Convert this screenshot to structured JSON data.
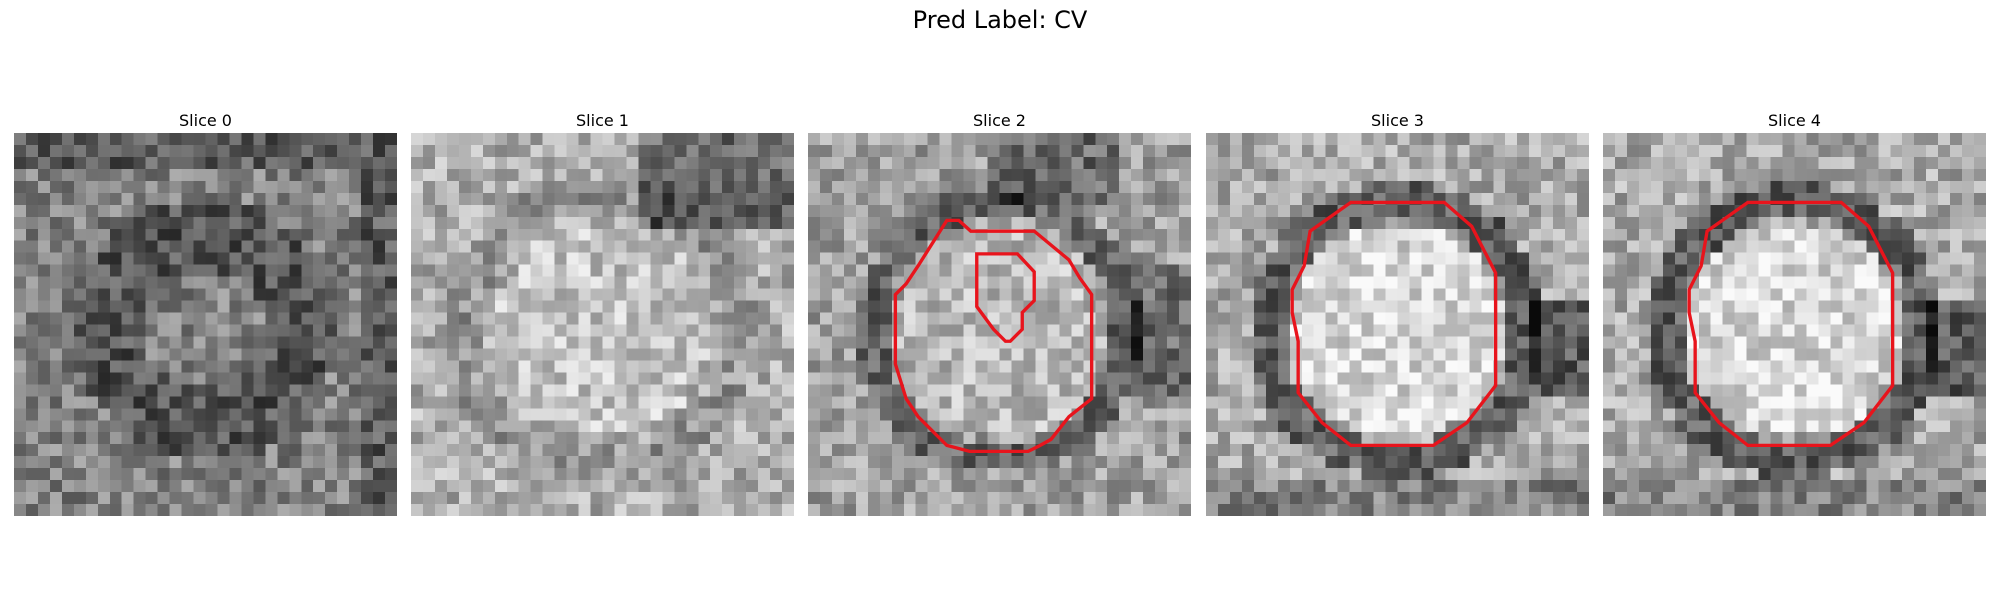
{
  "figure": {
    "title": "Pred Label: CV"
  },
  "slices": [
    {
      "title": "Slice 0",
      "seed": 11,
      "base": 130,
      "pattern": "ring-dark",
      "contour": "none"
    },
    {
      "title": "Slice 1",
      "seed": 23,
      "base": 175,
      "pattern": "blob-light",
      "contour": "none"
    },
    {
      "title": "Slice 2",
      "seed": 37,
      "base": 160,
      "pattern": "disc",
      "contour": "double"
    },
    {
      "title": "Slice 3",
      "seed": 51,
      "base": 170,
      "pattern": "disc-strong",
      "contour": "octagon"
    },
    {
      "title": "Slice 4",
      "seed": 67,
      "base": 170,
      "pattern": "disc-strong",
      "contour": "octagon"
    }
  ],
  "colors": {
    "contour": "#e8141c",
    "background": "#ffffff"
  }
}
